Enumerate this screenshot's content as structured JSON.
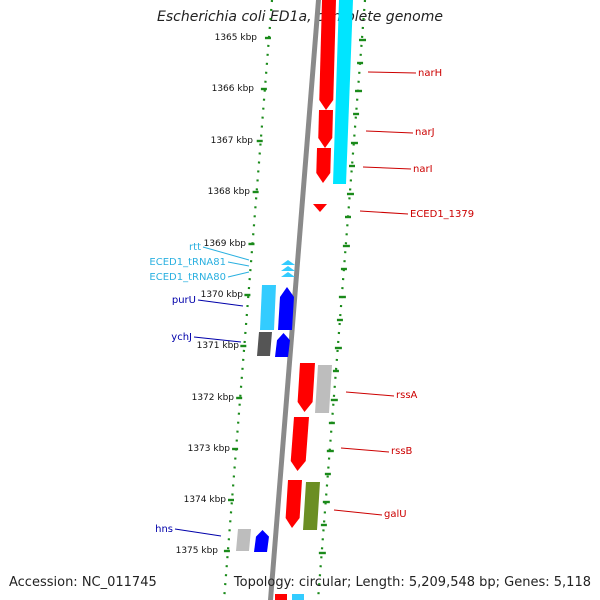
{
  "title": "Escherichia coli ED1a, complete genome",
  "footer": {
    "accession": "Accession: NC_011745",
    "topology": "Topology: circular; Length: 5,209,548 bp; Genes: 5,118"
  },
  "colors": {
    "forward_cds": "#ff0000",
    "reverse_cds": "#0000ff",
    "trna": "#33ccff",
    "rna_strand": "#00e5ff",
    "gray_feature": "#bdbdbd",
    "dark_feature": "#555555",
    "olive_feature": "#6b8e23",
    "backbone": "#888888",
    "dotted_track": "#1a8a1a"
  },
  "scale": {
    "unit": "kbp",
    "ticks": [
      "1365 kbp",
      "1366 kbp",
      "1367 kbp",
      "1368 kbp",
      "1369 kbp",
      "1370 kbp",
      "1371 kbp",
      "1372 kbp",
      "1373 kbp",
      "1374 kbp",
      "1375 kbp"
    ]
  },
  "genes_right": [
    {
      "label": "narH",
      "color": "#cc0000"
    },
    {
      "label": "narJ",
      "color": "#cc0000"
    },
    {
      "label": "narI",
      "color": "#cc0000"
    },
    {
      "label": "ECED1_1379",
      "color": "#cc0000"
    },
    {
      "label": "rssA",
      "color": "#cc0000"
    },
    {
      "label": "rssB",
      "color": "#cc0000"
    },
    {
      "label": "galU",
      "color": "#cc0000"
    }
  ],
  "genes_left": [
    {
      "label": "rtt",
      "color": "#2ab0e0"
    },
    {
      "label": "ECED1_tRNA81",
      "color": "#2ab0e0"
    },
    {
      "label": "ECED1_tRNA80",
      "color": "#2ab0e0"
    },
    {
      "label": "purU",
      "color": "#0000aa"
    },
    {
      "label": "ychJ",
      "color": "#0000aa"
    },
    {
      "label": "hns",
      "color": "#0000aa"
    }
  ]
}
